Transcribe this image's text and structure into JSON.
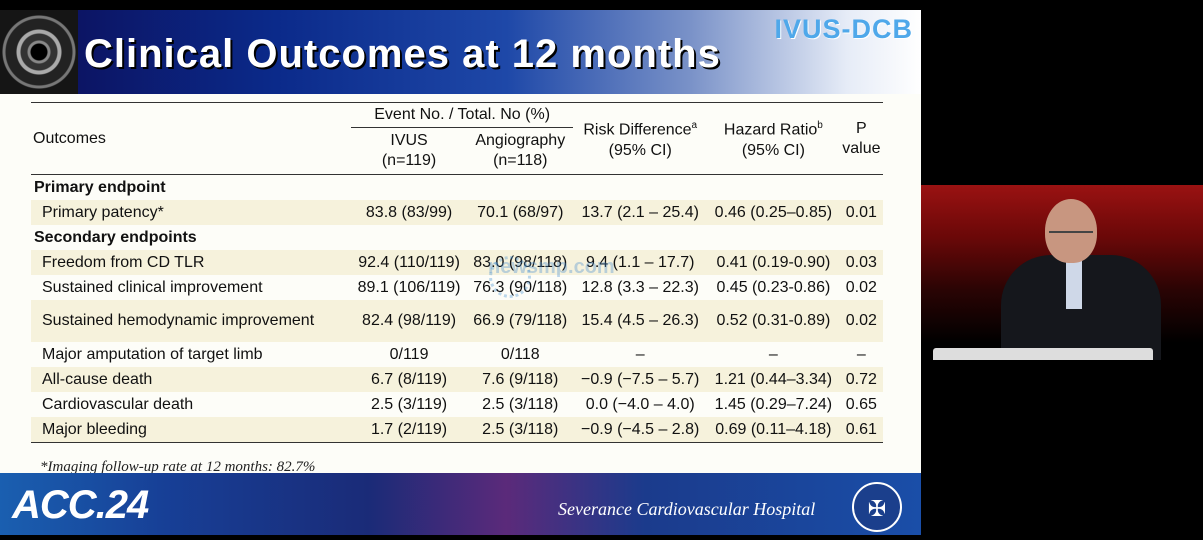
{
  "slide": {
    "title": "Clinical Outcomes at 12 months",
    "study_tag": "IVUS-DCB",
    "footnote": "*Imaging follow-up rate at 12 months: 82.7%",
    "conference_logo": "ACC.24",
    "hospital": "Severance Cardiovascular Hospital",
    "watermark": "newsmp.com"
  },
  "table": {
    "headers": {
      "outcomes": "Outcomes",
      "event_group": "Event No. / Total. No (%)",
      "ivus": "IVUS",
      "ivus_n": "(n=119)",
      "angio": "Angiography",
      "angio_n": "(n=118)",
      "risk_diff": "Risk Difference",
      "risk_diff_sup": "a",
      "hazard": "Hazard Ratio",
      "hazard_sup": "b",
      "ci": "(95% CI)",
      "p": "P",
      "p2": "value"
    },
    "sections": [
      {
        "label": "Primary endpoint",
        "rows": [
          {
            "outcome": "Primary patency*",
            "ivus": "83.8 (83/99)",
            "angio": "70.1 (68/97)",
            "rd": "13.7 (2.1 – 25.4)",
            "hr": "0.46 (0.25–0.85)",
            "p": "0.01"
          }
        ]
      },
      {
        "label": "Secondary endpoints",
        "rows": [
          {
            "outcome": "Freedom from CD TLR",
            "ivus": "92.4 (110/119)",
            "angio": "83.0 (98/118)",
            "rd": "9.4 (1.1 – 17.7)",
            "hr": "0.41 (0.19-0.90)",
            "p": "0.03"
          },
          {
            "outcome": "Sustained clinical improvement",
            "ivus": "89.1 (106/119)",
            "angio": "76.3 (90/118)",
            "rd": "12.8 (3.3 – 22.3)",
            "hr": "0.45 (0.23-0.86)",
            "p": "0.02"
          },
          {
            "outcome": "Sustained hemodynamic improvement",
            "ivus": "82.4  (98/119)",
            "angio": "66.9 (79/118)",
            "rd": "15.4 (4.5 – 26.3)",
            "hr": "0.52 (0.31-0.89)",
            "p": "0.02"
          },
          {
            "outcome": "Major amputation of target limb",
            "ivus": "0/119",
            "angio": "0/118",
            "rd": "–",
            "hr": "–",
            "p": "–"
          },
          {
            "outcome": "All-cause death",
            "ivus": "6.7 (8/119)",
            "angio": "7.6 (9/118)",
            "rd": "−0.9 (−7.5 – 5.7)",
            "hr": "1.21 (0.44–3.34)",
            "p": "0.72"
          },
          {
            "outcome": "Cardiovascular death",
            "ivus": "2.5 (3/119)",
            "angio": "2.5 (3/118)",
            "rd": "0.0 (−4.0 – 4.0)",
            "hr": "1.45 (0.29–7.24)",
            "p": "0.65"
          },
          {
            "outcome": "Major bleeding",
            "ivus": "1.7 (2/119)",
            "angio": "2.5 (3/118)",
            "rd": "−0.9 (−4.5 – 2.8)",
            "hr": "0.69 (0.11–4.18)",
            "p": "0.61"
          }
        ]
      }
    ]
  }
}
